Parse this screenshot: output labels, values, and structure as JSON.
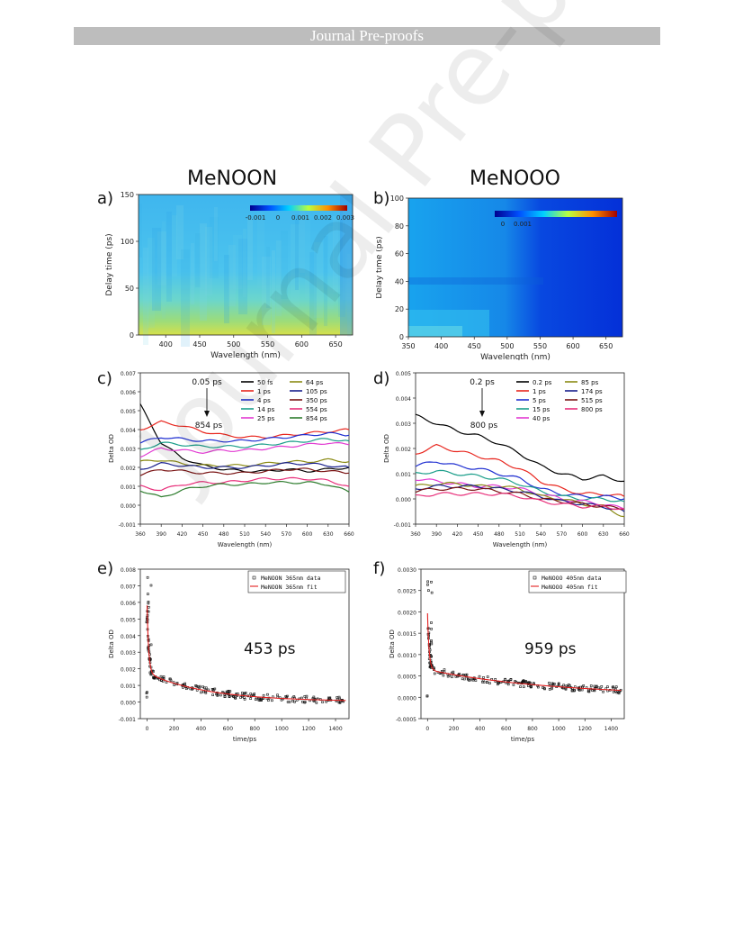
{
  "banner": "Journal Pre-proofs",
  "watermark": "Journal Pre-proofs",
  "titles": {
    "left": "MeNOON",
    "right": "MeNOOO"
  },
  "labels": {
    "a": "a)",
    "b": "b)",
    "c": "c)",
    "d": "d)",
    "e": "e)",
    "f": "f)"
  },
  "chart_data": [
    {
      "panel": "a",
      "type": "heatmap",
      "xlabel": "Wavelength (nm)",
      "ylabel": "Delay time (ps)",
      "xlim": [
        360,
        675
      ],
      "ylim": [
        0,
        150
      ],
      "xticks": [
        400,
        450,
        500,
        550,
        600,
        650
      ],
      "yticks": [
        0,
        50,
        100,
        150
      ],
      "colorbar": {
        "ticks": [
          "-0.001",
          "0",
          "0.001",
          "0.002",
          "0.003"
        ]
      }
    },
    {
      "panel": "b",
      "type": "heatmap",
      "xlabel": "Wavelength (nm)",
      "ylabel": "Delay time (ps)",
      "xlim": [
        350,
        675
      ],
      "ylim": [
        0,
        100
      ],
      "xticks": [
        350,
        400,
        450,
        500,
        550,
        600,
        650
      ],
      "yticks": [
        0,
        20,
        40,
        60,
        80,
        100
      ],
      "colorbar": {
        "ticks": [
          "0",
          "0.001"
        ]
      }
    },
    {
      "panel": "c",
      "type": "line",
      "xlabel": "Wavelength (nm)",
      "ylabel": "Delta OD",
      "xlim": [
        360,
        660
      ],
      "ylim": [
        -0.001,
        0.007
      ],
      "xticks": [
        360,
        390,
        420,
        450,
        480,
        510,
        540,
        570,
        600,
        630,
        660
      ],
      "yticks": [
        -0.001,
        0.0,
        0.001,
        0.002,
        0.003,
        0.004,
        0.005,
        0.006,
        0.007
      ],
      "annotation_top": "0.05 ps",
      "annotation_bottom": "854 ps",
      "x": [
        360,
        390,
        420,
        450,
        480,
        510,
        540,
        570,
        600,
        630,
        660
      ],
      "series": [
        {
          "name": "50 fs",
          "color": "#000000",
          "values": [
            0.0053,
            0.0033,
            0.0025,
            0.0021,
            0.0019,
            0.0018,
            0.0018,
            0.0019,
            0.0018,
            0.0019,
            0.002
          ]
        },
        {
          "name": "1 ps",
          "color": "#e8261e",
          "values": [
            0.004,
            0.0044,
            0.0042,
            0.0039,
            0.0037,
            0.0036,
            0.0036,
            0.0037,
            0.0038,
            0.0039,
            0.004
          ]
        },
        {
          "name": "4 ps",
          "color": "#1f2fd1",
          "values": [
            0.0033,
            0.0036,
            0.0035,
            0.0034,
            0.0034,
            0.0034,
            0.0035,
            0.0036,
            0.0037,
            0.0038,
            0.0037
          ]
        },
        {
          "name": "14 ps",
          "color": "#1b9e8a",
          "values": [
            0.0029,
            0.0033,
            0.0032,
            0.0031,
            0.0031,
            0.0031,
            0.0032,
            0.0033,
            0.0034,
            0.0035,
            0.0034
          ]
        },
        {
          "name": "25 ps",
          "color": "#e23bd2",
          "values": [
            0.0026,
            0.003,
            0.0029,
            0.0028,
            0.0029,
            0.0029,
            0.003,
            0.0031,
            0.0032,
            0.0033,
            0.0032
          ]
        },
        {
          "name": "64 ps",
          "color": "#8a8a14",
          "values": [
            0.0023,
            0.0024,
            0.0022,
            0.0021,
            0.0021,
            0.0021,
            0.0022,
            0.0023,
            0.0023,
            0.0024,
            0.0023
          ]
        },
        {
          "name": "105 ps",
          "color": "#181f8c",
          "values": [
            0.0019,
            0.0022,
            0.0021,
            0.002,
            0.002,
            0.002,
            0.0021,
            0.0022,
            0.0022,
            0.0021,
            0.002
          ]
        },
        {
          "name": "350 ps",
          "color": "#7a1414",
          "values": [
            0.0016,
            0.0019,
            0.0018,
            0.0017,
            0.0017,
            0.0017,
            0.0018,
            0.0019,
            0.0019,
            0.0018,
            0.0017
          ]
        },
        {
          "name": "554 ps",
          "color": "#e82f7a",
          "values": [
            0.001,
            0.0008,
            0.0011,
            0.0012,
            0.0012,
            0.0013,
            0.0014,
            0.0014,
            0.0014,
            0.0013,
            0.001
          ]
        },
        {
          "name": "854 ps",
          "color": "#2e7d2e",
          "values": [
            0.0008,
            0.0004,
            0.0008,
            0.001,
            0.0011,
            0.0011,
            0.0012,
            0.0012,
            0.0012,
            0.0011,
            0.0007
          ]
        }
      ]
    },
    {
      "panel": "d",
      "type": "line",
      "xlabel": "Wavelength (nm)",
      "ylabel": "Delta OD",
      "xlim": [
        360,
        660
      ],
      "ylim": [
        -0.001,
        0.005
      ],
      "xticks": [
        360,
        390,
        420,
        450,
        480,
        510,
        540,
        570,
        600,
        630,
        660
      ],
      "yticks": [
        -0.001,
        0.0,
        0.001,
        0.002,
        0.003,
        0.004,
        0.005
      ],
      "annotation_top": "0.2 ps",
      "annotation_bottom": "800 ps",
      "x": [
        360,
        390,
        420,
        450,
        480,
        510,
        540,
        570,
        600,
        630,
        660
      ],
      "series": [
        {
          "name": "0.2 ps",
          "color": "#000000",
          "values": [
            0.0033,
            0.003,
            0.0027,
            0.0025,
            0.0022,
            0.0018,
            0.0013,
            0.001,
            0.0008,
            0.0009,
            0.0007
          ]
        },
        {
          "name": "1 ps",
          "color": "#e8261e",
          "values": [
            0.0018,
            0.0021,
            0.0019,
            0.0017,
            0.0015,
            0.0012,
            0.0007,
            0.0004,
            0.0002,
            0.0002,
            0.0001
          ]
        },
        {
          "name": "5 ps",
          "color": "#1f2fd1",
          "values": [
            0.0013,
            0.0015,
            0.0013,
            0.0012,
            0.001,
            0.0008,
            0.0004,
            0.0002,
            0.0001,
            0.0001,
            0.0
          ]
        },
        {
          "name": "15 ps",
          "color": "#1b9e8a",
          "values": [
            0.001,
            0.0011,
            0.001,
            0.0009,
            0.0008,
            0.0006,
            0.0003,
            0.0001,
            0.0,
            0.0,
            -0.0001
          ]
        },
        {
          "name": "40 ps",
          "color": "#e23bd2",
          "values": [
            0.0008,
            0.0007,
            0.0006,
            0.0005,
            0.0005,
            0.0004,
            0.0002,
            0.0,
            -0.0001,
            -0.0002,
            -0.0004
          ]
        },
        {
          "name": "85 ps",
          "color": "#8a8a14",
          "values": [
            0.0005,
            0.0006,
            0.0006,
            0.0005,
            0.0005,
            0.0004,
            0.0001,
            0.0,
            -0.0002,
            -0.0003,
            -0.0007
          ]
        },
        {
          "name": "174 ps",
          "color": "#181f8c",
          "values": [
            0.0004,
            0.0005,
            0.0005,
            0.0005,
            0.0004,
            0.0003,
            0.0001,
            -0.0001,
            -0.0002,
            -0.0003,
            -0.0005
          ]
        },
        {
          "name": "515 ps",
          "color": "#7a1414",
          "values": [
            0.0003,
            0.0004,
            0.0004,
            0.0004,
            0.0003,
            0.0002,
            0.0,
            -0.0001,
            -0.0002,
            -0.0003,
            -0.0004
          ]
        },
        {
          "name": "800 ps",
          "color": "#e82f7a",
          "values": [
            0.0001,
            0.0002,
            0.0002,
            0.0002,
            0.0002,
            0.0001,
            -0.0001,
            -0.0002,
            -0.0003,
            -0.0003,
            -0.0004
          ]
        }
      ]
    },
    {
      "panel": "e",
      "type": "scatter",
      "xlabel": "time/ps",
      "ylabel": "Delta OD",
      "xlim": [
        -50,
        1500
      ],
      "ylim": [
        -0.001,
        0.008
      ],
      "xticks": [
        0,
        200,
        400,
        600,
        800,
        1000,
        1200,
        1400
      ],
      "yticks": [
        -0.001,
        0.0,
        0.001,
        0.002,
        0.003,
        0.004,
        0.005,
        0.006,
        0.007,
        0.008
      ],
      "legend": [
        "MeNOON 365nm data",
        "MeNOON 365nm fit"
      ],
      "annotation": "453 ps",
      "fit": {
        "type": "biexponential",
        "lifetime_ps": 453
      },
      "data_summary": {
        "peak": 0.0078,
        "late_value": 0.0001
      }
    },
    {
      "panel": "f",
      "type": "scatter",
      "xlabel": "time/ps",
      "ylabel": "Delta OD",
      "xlim": [
        -50,
        1500
      ],
      "ylim": [
        -0.0005,
        0.003
      ],
      "xticks": [
        0,
        200,
        400,
        600,
        800,
        1000,
        1200,
        1400
      ],
      "yticks": [
        -0.0005,
        0.0,
        0.0005,
        0.001,
        0.0015,
        0.002,
        0.0025,
        0.003
      ],
      "legend": [
        "MeNOOO 405nm data",
        "MeNOOO 405nm fit"
      ],
      "annotation": "959 ps",
      "fit": {
        "type": "biexponential",
        "lifetime_ps": 959
      },
      "data_summary": {
        "peak": 0.0028,
        "late_value": 0.0001
      }
    }
  ]
}
